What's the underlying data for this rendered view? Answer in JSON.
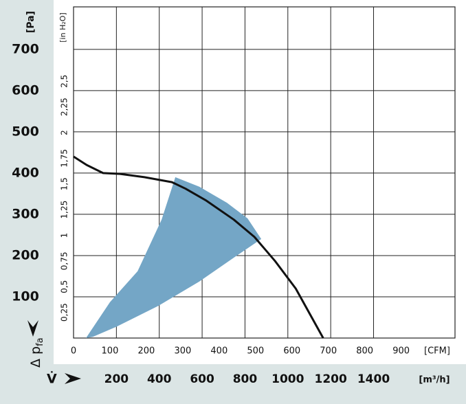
{
  "chart_data": {
    "type": "line",
    "y_label": "[Pa]",
    "y_title": "Δ p",
    "y_title_sub": "fa",
    "y2_label": "[in H₂O]",
    "x_title": "V̇",
    "x_label": "[m³/h]",
    "x2_label": "[CFM]",
    "xlim": [
      0,
      1780
    ],
    "xticks": [
      200,
      400,
      600,
      800,
      1000,
      1200,
      1400
    ],
    "x2lim": [
      0,
      1048
    ],
    "x2ticks": [
      0,
      100,
      200,
      300,
      400,
      500,
      600,
      700,
      800,
      900
    ],
    "ylim": [
      0,
      803
    ],
    "yticks": [
      100,
      200,
      300,
      400,
      500,
      600,
      700
    ],
    "y2lim": [
      0,
      3.224
    ],
    "y2ticks": [
      {
        "value": 0.25,
        "label": "0,25"
      },
      {
        "value": 0.5,
        "label": "0,5"
      },
      {
        "value": 0.75,
        "label": "0,75"
      },
      1,
      {
        "value": 1.25,
        "label": "1,25"
      },
      {
        "value": 1.5,
        "label": "1,5"
      },
      {
        "value": 1.75,
        "label": "1,75"
      },
      2,
      {
        "value": 2.25,
        "label": "2,25"
      },
      {
        "value": 2.5,
        "label": "2,5"
      }
    ],
    "grid": true,
    "series": [
      {
        "color": "#111111",
        "x": [
          0,
          60,
          138,
          218,
          331,
          459,
          523,
          620,
          748,
          844,
          940,
          1037,
          1165
        ],
        "values": [
          440,
          420,
          400,
          398,
          390,
          378,
          362,
          333,
          287,
          245,
          187,
          120,
          0
        ]
      }
    ],
    "area": {
      "color": "#74a6c6",
      "x": [
        58,
        170,
        299,
        411,
        475,
        587,
        716,
        812,
        876,
        748,
        587,
        395,
        202,
        90
      ],
      "values": [
        0,
        87,
        162,
        287,
        390,
        367,
        328,
        290,
        240,
        195,
        137,
        78,
        28,
        3
      ]
    }
  }
}
